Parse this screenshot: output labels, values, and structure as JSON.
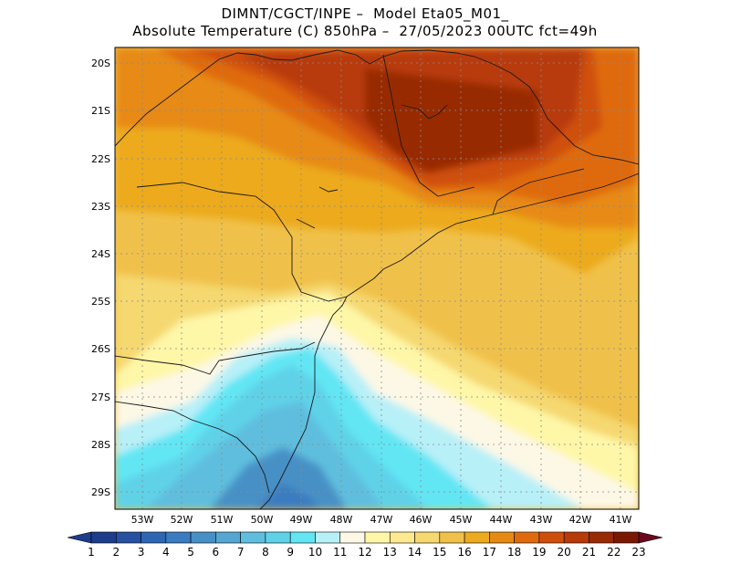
{
  "header": {
    "line1": "DIMNT/CGCT/INPE –  Model Eta05_M01_",
    "line2": "Absolute Temperature (C) 850hPa –  27/05/2023 00UTC fct=49h"
  },
  "map": {
    "lat_labels": [
      "20S",
      "21S",
      "22S",
      "23S",
      "24S",
      "25S",
      "26S",
      "27S",
      "28S",
      "29S"
    ],
    "lon_labels": [
      "53W",
      "52W",
      "51W",
      "50W",
      "49W",
      "48W",
      "47W",
      "46W",
      "45W",
      "44W",
      "43W",
      "42W",
      "41W"
    ],
    "lat_range": [
      -29.5,
      -19.9
    ],
    "lon_range": [
      -53.9,
      -40.5
    ]
  },
  "colorbar": {
    "labels": [
      "1",
      "2",
      "3",
      "4",
      "5",
      "6",
      "7",
      "8",
      "9",
      "10",
      "11",
      "12",
      "13",
      "14",
      "15",
      "16",
      "17",
      "18",
      "19",
      "20",
      "21",
      "22",
      "23"
    ],
    "colors": [
      "#1e3c8c",
      "#2850a0",
      "#2f66b4",
      "#3b7cc0",
      "#4690c6",
      "#55a6d0",
      "#5fbede",
      "#5fd2e8",
      "#62e6f4",
      "#b8f0f8",
      "#fdf8e6",
      "#fef7a8",
      "#fde990",
      "#f5d870",
      "#f0c14a",
      "#ecaa1e",
      "#e78a14",
      "#df6a0e",
      "#cf4f0a",
      "#b83a08",
      "#982a06",
      "#7a1804"
    ],
    "under_color": "#1e3c8c",
    "over_color": "#6a0820"
  }
}
